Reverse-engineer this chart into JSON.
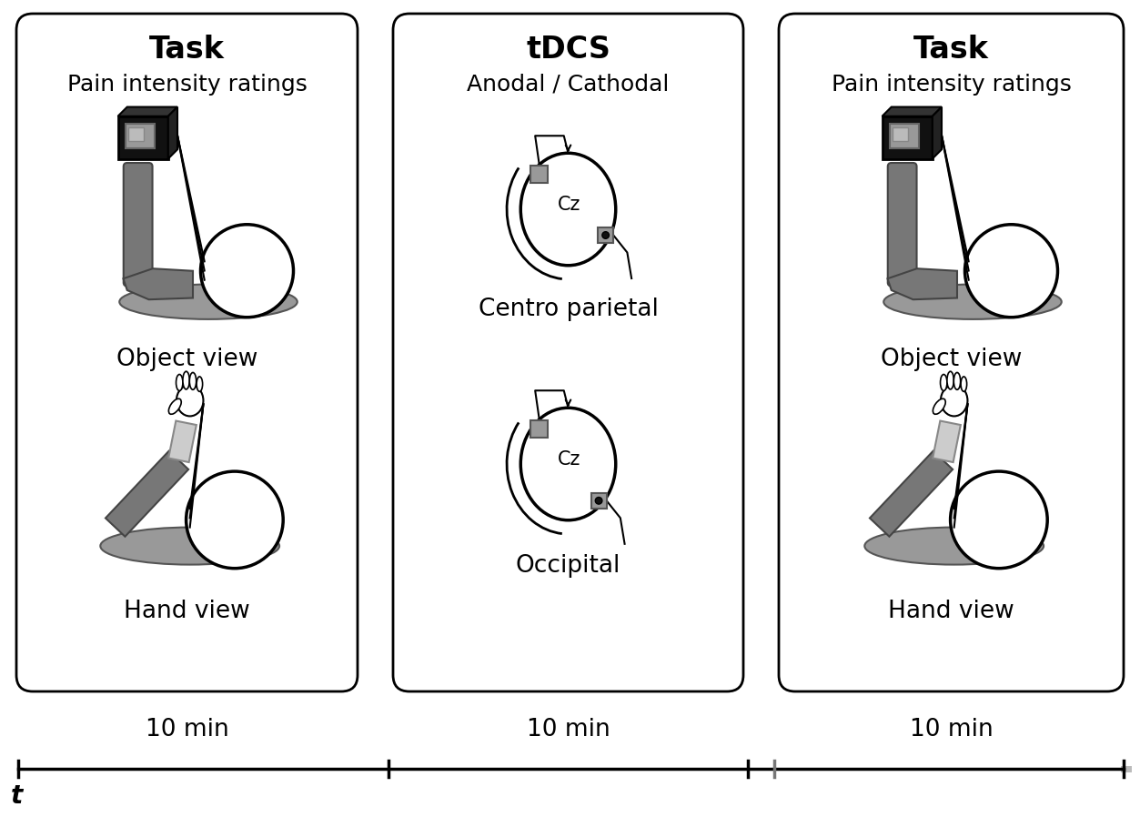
{
  "bg_color": "#ffffff",
  "panel1_title": "Task",
  "panel1_subtitle": "Pain intensity ratings",
  "panel2_title": "tDCS",
  "panel2_subtitle": "Anodal / Cathodal",
  "panel3_title": "Task",
  "panel3_subtitle": "Pain intensity ratings",
  "object_view_label": "Object view",
  "hand_view_label": "Hand view",
  "centro_label": "Centro parietal",
  "occipital_label": "Occipital",
  "cz_label": "Cz",
  "time_label": "10 min",
  "t_label": "t",
  "black": "#000000",
  "white": "#ffffff",
  "gray": "#888888",
  "dark_gray": "#555555",
  "mid_gray": "#666666",
  "light_gray": "#aaaaaa"
}
